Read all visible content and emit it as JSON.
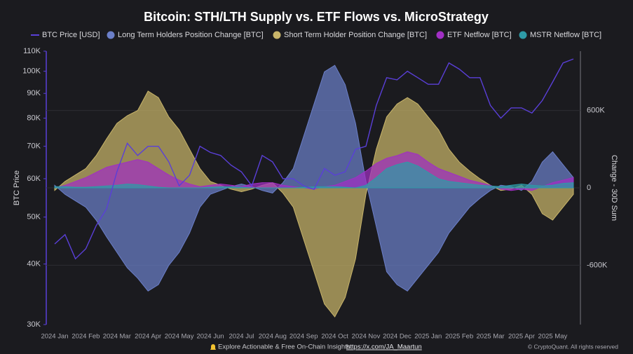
{
  "chart_data": {
    "type": "area",
    "title": "Bitcoin: STH/LTH Supply vs. ETF Flows vs. MicroStrategy",
    "ylabel": "BTC Price",
    "y2label": "Change - 30D Sum",
    "categories": [
      "2024 Jan",
      null,
      null,
      "2024 Feb",
      null,
      null,
      "2024 Mar",
      null,
      null,
      "2024 Apr",
      null,
      null,
      "2024 May",
      null,
      null,
      "2024 Jun",
      null,
      null,
      "2024 Jul",
      null,
      null,
      "2024 Aug",
      null,
      null,
      "2024 Sep",
      null,
      null,
      "2024 Oct",
      null,
      null,
      "2024 Nov",
      null,
      null,
      "2024 Dec",
      null,
      null,
      "2025 Jan",
      null,
      null,
      "2025 Feb",
      null,
      null,
      "2025 Mar",
      null,
      null,
      "2025 Apr",
      null,
      null,
      "2025 May",
      null,
      null
    ],
    "yscale": "log",
    "ylim": [
      30000,
      110000
    ],
    "yticks": [
      {
        "value": 30000,
        "label": "30K"
      },
      {
        "value": 40000,
        "label": "40K"
      },
      {
        "value": 50000,
        "label": "50K"
      },
      {
        "value": 60000,
        "label": "60K"
      },
      {
        "value": 70000,
        "label": "70K"
      },
      {
        "value": 80000,
        "label": "80K"
      },
      {
        "value": 90000,
        "label": "90K"
      },
      {
        "value": 100000,
        "label": "100K"
      },
      {
        "value": 110000,
        "label": "110K"
      }
    ],
    "y2lim": [
      -1060000,
      1060000
    ],
    "y2ticks": [
      {
        "value": -600000,
        "label": "-600K"
      },
      0,
      {
        "value": 600000,
        "label": "600K"
      }
    ],
    "grid": true,
    "legend": "top",
    "series": [
      {
        "name": "BTC Price [USD]",
        "type": "line",
        "axis": "y",
        "color": "#5a3fd8",
        "values": [
          44000,
          46000,
          41000,
          43000,
          48000,
          52000,
          62000,
          71000,
          67000,
          70000,
          70000,
          65000,
          58000,
          61000,
          70000,
          68000,
          67000,
          64000,
          62000,
          58000,
          67000,
          65000,
          60000,
          60000,
          58000,
          57000,
          63000,
          61000,
          62000,
          69000,
          70000,
          85000,
          97000,
          96000,
          100000,
          97000,
          94000,
          94000,
          104000,
          101000,
          97000,
          97000,
          85000,
          80000,
          84000,
          84000,
          82000,
          87000,
          95000,
          104000,
          106000
        ]
      },
      {
        "name": "Long Term Holders Position Change [BTC]",
        "type": "area",
        "axis": "y2",
        "color": "#6b7fc9",
        "values": [
          20000,
          -50000,
          -100000,
          -150000,
          -250000,
          -380000,
          -500000,
          -620000,
          -700000,
          -800000,
          -750000,
          -600000,
          -500000,
          -350000,
          -150000,
          -50000,
          -20000,
          10000,
          30000,
          10000,
          -20000,
          -40000,
          40000,
          150000,
          400000,
          650000,
          900000,
          950000,
          800000,
          500000,
          50000,
          -300000,
          -650000,
          -750000,
          -800000,
          -700000,
          -600000,
          -500000,
          -350000,
          -250000,
          -150000,
          -80000,
          -20000,
          20000,
          10000,
          -20000,
          50000,
          200000,
          280000,
          180000,
          80000
        ]
      },
      {
        "name": "Short Term Holder Position Change [BTC]",
        "type": "area",
        "axis": "y2",
        "color": "#c9b56a",
        "values": [
          -20000,
          50000,
          100000,
          150000,
          250000,
          380000,
          500000,
          560000,
          600000,
          750000,
          700000,
          550000,
          450000,
          300000,
          150000,
          50000,
          20000,
          -10000,
          -30000,
          -10000,
          20000,
          40000,
          -40000,
          -150000,
          -400000,
          -650000,
          -900000,
          -1000000,
          -850000,
          -550000,
          -50000,
          300000,
          550000,
          650000,
          700000,
          650000,
          550000,
          450000,
          300000,
          200000,
          130000,
          70000,
          20000,
          -20000,
          -10000,
          20000,
          -50000,
          -200000,
          -250000,
          -150000,
          -50000
        ]
      },
      {
        "name": "ETF Netflow [BTC]",
        "type": "area",
        "axis": "y2",
        "color": "#a12fc4",
        "values": [
          0,
          20000,
          50000,
          80000,
          120000,
          160000,
          180000,
          200000,
          220000,
          200000,
          150000,
          100000,
          60000,
          30000,
          10000,
          20000,
          30000,
          20000,
          10000,
          30000,
          40000,
          40000,
          20000,
          10000,
          0,
          -10000,
          10000,
          20000,
          50000,
          80000,
          130000,
          190000,
          230000,
          250000,
          280000,
          260000,
          200000,
          150000,
          120000,
          90000,
          60000,
          40000,
          20000,
          -10000,
          -20000,
          -10000,
          -20000,
          10000,
          40000,
          60000,
          80000
        ]
      },
      {
        "name": "MSTR Netflow [BTC]",
        "type": "area",
        "axis": "y2",
        "color": "#2e9aa6",
        "values": [
          10000,
          10000,
          5000,
          5000,
          10000,
          15000,
          20000,
          30000,
          25000,
          15000,
          5000,
          0,
          0,
          0,
          0,
          5000,
          8000,
          8000,
          5000,
          0,
          0,
          0,
          0,
          0,
          5000,
          8000,
          10000,
          10000,
          5000,
          0,
          20000,
          80000,
          150000,
          180000,
          200000,
          170000,
          120000,
          70000,
          50000,
          40000,
          30000,
          20000,
          15000,
          10000,
          20000,
          30000,
          20000,
          15000,
          20000,
          35000,
          40000
        ]
      }
    ]
  },
  "footer": {
    "text": "Explore Actionable & Free On-Chain Insights:",
    "link": "https://x.com/JA_Maartun",
    "credit": "© CryptoQuant. All rights reserved"
  }
}
